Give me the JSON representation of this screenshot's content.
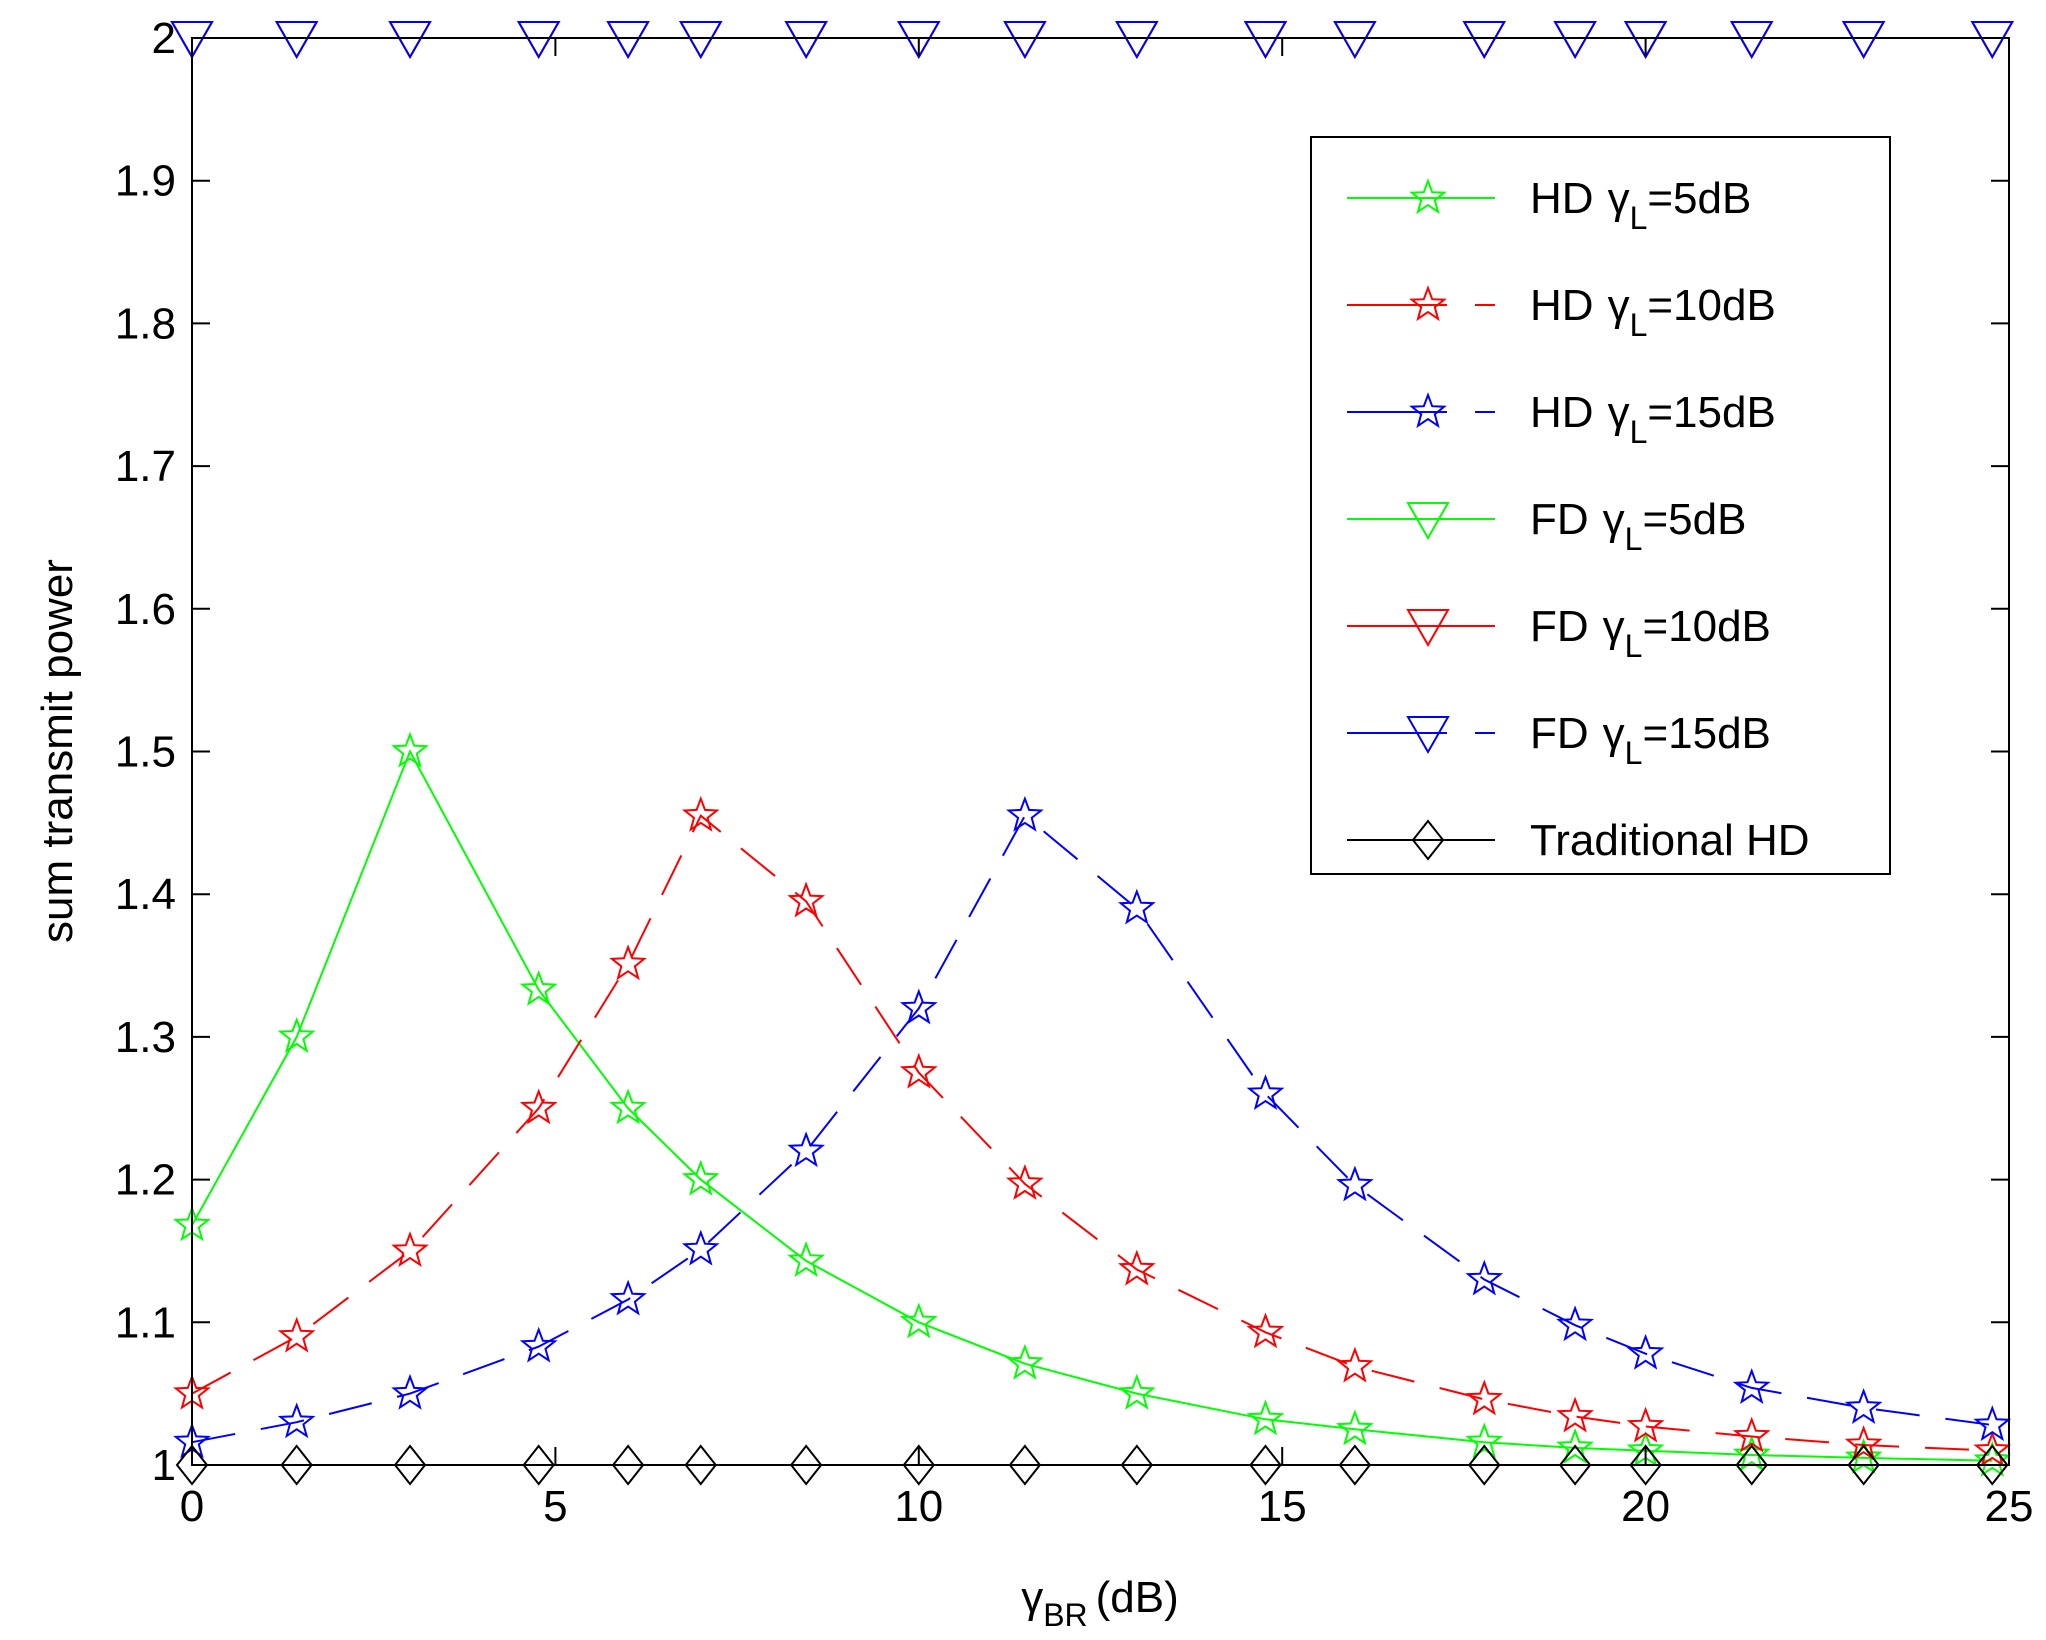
{
  "chart_data": {
    "type": "line",
    "xlabel": "(dB)",
    "xlabel_symbol": "γ",
    "xlabel_subscript": "BR",
    "ylabel": "sum transmit power",
    "xlim": [
      0,
      25
    ],
    "ylim": [
      1,
      2
    ],
    "x_ticks": [
      0,
      5,
      10,
      15,
      20,
      25
    ],
    "y_ticks": [
      1,
      1.1,
      1.2,
      1.3,
      1.4,
      1.5,
      1.6,
      1.7,
      1.8,
      1.9,
      2
    ],
    "grid": false,
    "legend_position": "top-right",
    "series": [
      {
        "name": "HD γL=5dB",
        "legend_prefix": "HD",
        "legend_symbol": "γ",
        "legend_subscript": "L",
        "legend_suffix": "=5dB",
        "color": "#00ff00",
        "marker": "star",
        "linestyle": "solid",
        "x": [
          0,
          1.44,
          3,
          4.77,
          6,
          7,
          8.45,
          10,
          11.46,
          13,
          14.77,
          16,
          17.78,
          19.03,
          20,
          21.46,
          23,
          24.77
        ],
        "y": [
          1.168,
          1.3,
          1.5,
          1.333,
          1.25,
          1.2,
          1.143,
          1.1,
          1.071,
          1.05,
          1.032,
          1.025,
          1.016,
          1.012,
          1.01,
          1.007,
          1.005,
          1.003
        ]
      },
      {
        "name": "HD γL=10dB",
        "legend_prefix": "HD",
        "legend_symbol": "γ",
        "legend_subscript": "L",
        "legend_suffix": "=10dB",
        "color": "#ff0000",
        "marker": "star",
        "linestyle": "dashed",
        "x": [
          0,
          1.44,
          3,
          4.77,
          6,
          7,
          8.45,
          10,
          11.46,
          13,
          14.77,
          16,
          17.78,
          19.03,
          20,
          21.46,
          23,
          24.77
        ],
        "y": [
          1.05,
          1.09,
          1.15,
          1.25,
          1.351,
          1.455,
          1.395,
          1.275,
          1.197,
          1.137,
          1.093,
          1.069,
          1.046,
          1.034,
          1.027,
          1.02,
          1.014,
          1.01
        ]
      },
      {
        "name": "HD γL=15dB",
        "legend_prefix": "HD",
        "legend_symbol": "γ",
        "legend_subscript": "L",
        "legend_suffix": "=15dB",
        "color": "#0000ff",
        "marker": "star",
        "linestyle": "dashed",
        "x": [
          0,
          1.44,
          3,
          4.77,
          6,
          7,
          8.45,
          10,
          11.46,
          13,
          14.77,
          16,
          17.78,
          19.03,
          20,
          21.46,
          23,
          24.77
        ],
        "y": [
          1.016,
          1.03,
          1.05,
          1.083,
          1.116,
          1.151,
          1.22,
          1.32,
          1.455,
          1.39,
          1.26,
          1.196,
          1.13,
          1.098,
          1.078,
          1.054,
          1.04,
          1.028
        ]
      },
      {
        "name": "FD γL=5dB",
        "legend_prefix": "FD",
        "legend_symbol": "γ",
        "legend_subscript": "L",
        "legend_suffix": "=5dB",
        "color": "#00ff00",
        "marker": "triangle-down",
        "linestyle": "solid",
        "x": [
          0,
          1.44,
          3,
          4.77,
          6,
          7,
          8.45,
          10,
          11.46,
          13,
          14.77,
          16,
          17.78,
          19.03,
          20,
          21.46,
          23,
          24.77
        ],
        "y": [
          2,
          2,
          2,
          2,
          2,
          2,
          2,
          2,
          2,
          2,
          2,
          2,
          2,
          2,
          2,
          2,
          2,
          2
        ]
      },
      {
        "name": "FD γL=10dB",
        "legend_prefix": "FD",
        "legend_symbol": "γ",
        "legend_subscript": "L",
        "legend_suffix": "=10dB",
        "color": "#ff0000",
        "marker": "triangle-down",
        "linestyle": "solid",
        "x": [
          0,
          1.44,
          3,
          4.77,
          6,
          7,
          8.45,
          10,
          11.46,
          13,
          14.77,
          16,
          17.78,
          19.03,
          20,
          21.46,
          23,
          24.77
        ],
        "y": [
          2,
          2,
          2,
          2,
          2,
          2,
          2,
          2,
          2,
          2,
          2,
          2,
          2,
          2,
          2,
          2,
          2,
          2
        ]
      },
      {
        "name": "FD γL=15dB",
        "legend_prefix": "FD",
        "legend_symbol": "γ",
        "legend_subscript": "L",
        "legend_suffix": "=15dB",
        "color": "#0000ff",
        "marker": "triangle-down",
        "linestyle": "dashed",
        "x": [
          0,
          1.44,
          3,
          4.77,
          6,
          7,
          8.45,
          10,
          11.46,
          13,
          14.77,
          16,
          17.78,
          19.03,
          20,
          21.46,
          23,
          24.77
        ],
        "y": [
          2,
          2,
          2,
          2,
          2,
          2,
          2,
          2,
          2,
          2,
          2,
          2,
          2,
          2,
          2,
          2,
          2,
          2
        ]
      },
      {
        "name": "Traditional HD",
        "legend_prefix": "Traditional HD",
        "legend_symbol": "",
        "legend_subscript": "",
        "legend_suffix": "",
        "color": "#000000",
        "marker": "diamond",
        "linestyle": "solid",
        "x": [
          0,
          1.44,
          3,
          4.77,
          6,
          7,
          8.45,
          10,
          11.46,
          13,
          14.77,
          16,
          17.78,
          19.03,
          20,
          21.46,
          23,
          24.77
        ],
        "y": [
          1,
          1,
          1,
          1,
          1,
          1,
          1,
          1,
          1,
          1,
          1,
          1,
          1,
          1,
          1,
          1,
          1,
          1
        ]
      }
    ]
  }
}
